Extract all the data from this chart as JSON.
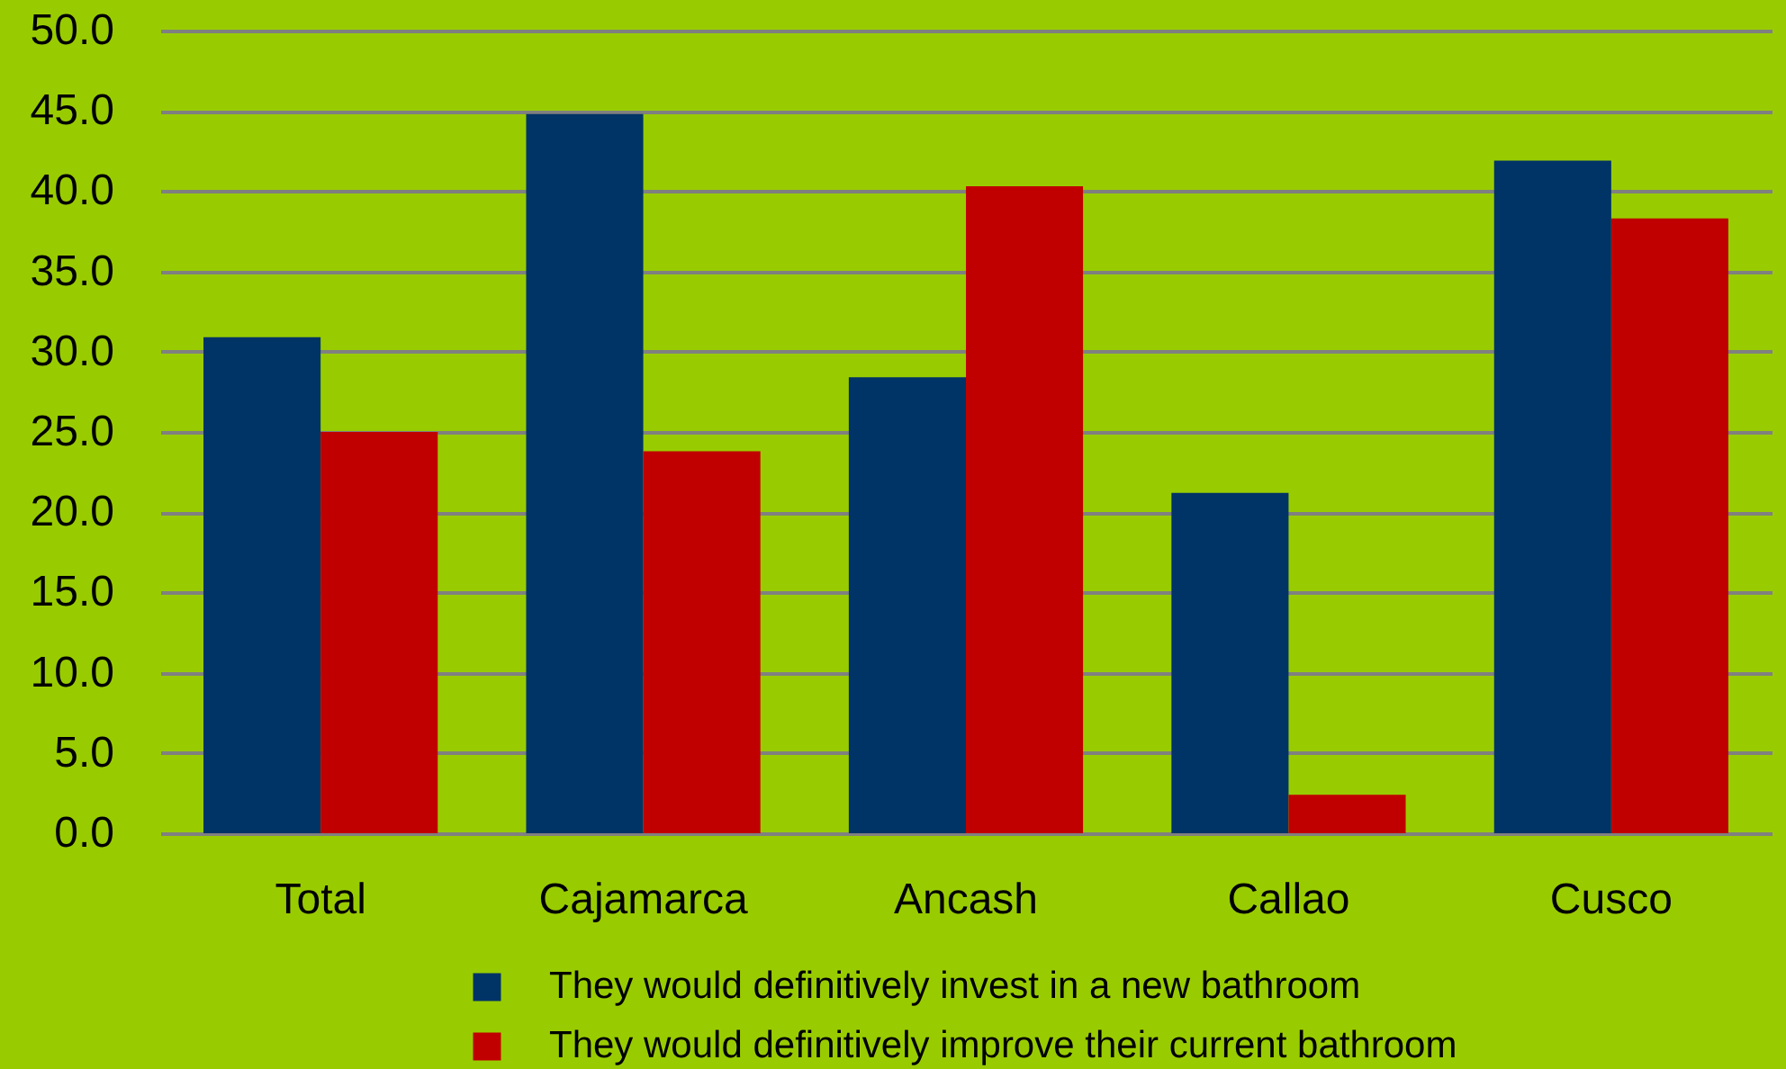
{
  "chart_data": {
    "type": "bar",
    "categories": [
      "Total",
      "Cajamarca",
      "Ancash",
      "Callao",
      "Cusco"
    ],
    "series": [
      {
        "name": "They would definitively invest in a new bathroom",
        "color": "#003366",
        "values": [
          30.9,
          44.8,
          28.4,
          21.2,
          41.9
        ]
      },
      {
        "name": "They would  definitively improve their current bathroom",
        "color": "#c00000",
        "values": [
          25.0,
          23.8,
          40.3,
          2.4,
          38.3
        ]
      }
    ],
    "ylim": [
      0,
      50
    ],
    "yticks": [
      {
        "value": 0,
        "label": "0.0"
      },
      {
        "value": 5,
        "label": "5.0"
      },
      {
        "value": 10,
        "label": "10.0"
      },
      {
        "value": 15,
        "label": "15.0"
      },
      {
        "value": 20,
        "label": "20.0"
      },
      {
        "value": 25,
        "label": "25.0"
      },
      {
        "value": 30,
        "label": "30.0"
      },
      {
        "value": 35,
        "label": "35.0"
      },
      {
        "value": 40,
        "label": "40.0"
      },
      {
        "value": 45,
        "label": "45.0"
      },
      {
        "value": 50,
        "label": "50.0"
      }
    ],
    "grid": "y",
    "legend": "bottom"
  }
}
